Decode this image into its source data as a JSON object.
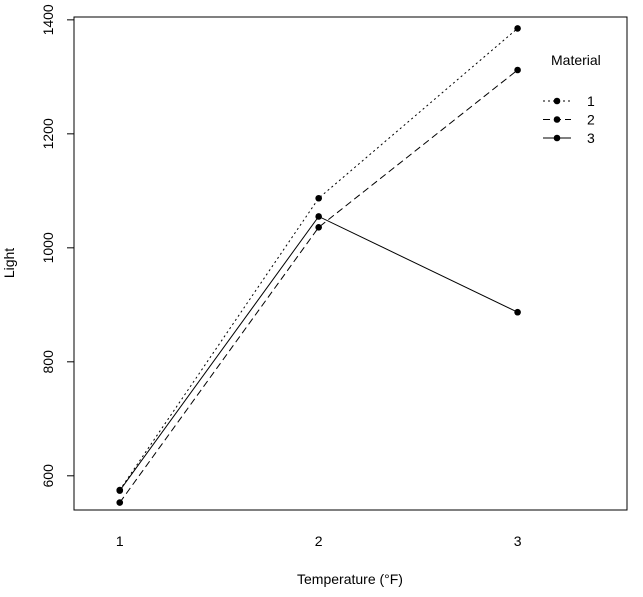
{
  "chart_data": {
    "type": "line",
    "title": "",
    "xlabel": "Temperature (°F)",
    "ylabel": "Light",
    "categories": [
      "1",
      "2",
      "3"
    ],
    "x": [
      1,
      2,
      3
    ],
    "xlim": [
      0.77,
      3.55
    ],
    "ylim": [
      540,
      1405
    ],
    "yticks": [
      600,
      800,
      1000,
      1200,
      1400
    ],
    "grid": false,
    "legend": {
      "title": "Material",
      "position": "top-right",
      "entries": [
        "1",
        "2",
        "3"
      ]
    },
    "series": [
      {
        "name": "1",
        "line_style": "dotted",
        "values": [
          575,
          1087,
          1385
        ]
      },
      {
        "name": "2",
        "line_style": "dashed",
        "values": [
          553,
          1036,
          1312
        ]
      },
      {
        "name": "3",
        "line_style": "solid",
        "values": [
          574,
          1055,
          887
        ]
      }
    ]
  }
}
